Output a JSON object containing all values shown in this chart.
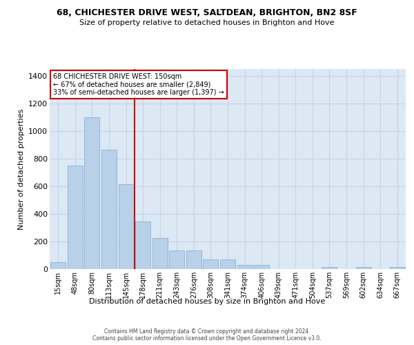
{
  "title1": "68, CHICHESTER DRIVE WEST, SALTDEAN, BRIGHTON, BN2 8SF",
  "title2": "Size of property relative to detached houses in Brighton and Hove",
  "xlabel": "Distribution of detached houses by size in Brighton and Hove",
  "ylabel": "Number of detached properties",
  "bar_labels": [
    "15sqm",
    "48sqm",
    "80sqm",
    "113sqm",
    "145sqm",
    "178sqm",
    "211sqm",
    "243sqm",
    "276sqm",
    "308sqm",
    "341sqm",
    "374sqm",
    "406sqm",
    "439sqm",
    "471sqm",
    "504sqm",
    "537sqm",
    "569sqm",
    "602sqm",
    "634sqm",
    "667sqm"
  ],
  "bar_values": [
    50,
    750,
    1100,
    865,
    615,
    345,
    225,
    135,
    135,
    70,
    70,
    30,
    30,
    0,
    0,
    0,
    15,
    0,
    15,
    0,
    15
  ],
  "bar_color": "#b8d0e8",
  "bar_edge_color": "#7aaacf",
  "vline_position": 4.5,
  "vline_color": "#cc0000",
  "annotation_text": "68 CHICHESTER DRIVE WEST: 150sqm\n← 67% of detached houses are smaller (2,849)\n33% of semi-detached houses are larger (1,397) →",
  "annotation_box_edgecolor": "#cc0000",
  "ylim": [
    0,
    1450
  ],
  "yticks": [
    0,
    200,
    400,
    600,
    800,
    1000,
    1200,
    1400
  ],
  "grid_color": "#c8d4e4",
  "bg_color": "#dce8f4",
  "footer1": "Contains HM Land Registry data © Crown copyright and database right 2024.",
  "footer2": "Contains public sector information licensed under the Open Government Licence v3.0."
}
